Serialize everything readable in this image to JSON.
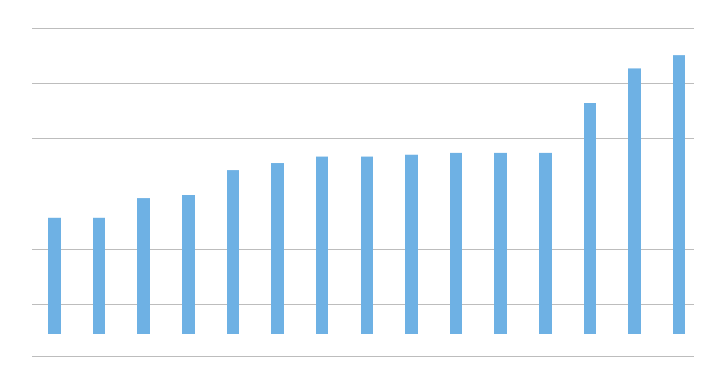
{
  "chart_data": {
    "type": "bar",
    "values": [
      21,
      21,
      24.5,
      25,
      29.5,
      30.8,
      32,
      32,
      32.3,
      32.6,
      32.6,
      32.6,
      41.7,
      48,
      50.3
    ],
    "grid": true,
    "legend": "none",
    "colors": {
      "bar": "#6EB1E4",
      "grid": "#BDBDBD"
    }
  }
}
